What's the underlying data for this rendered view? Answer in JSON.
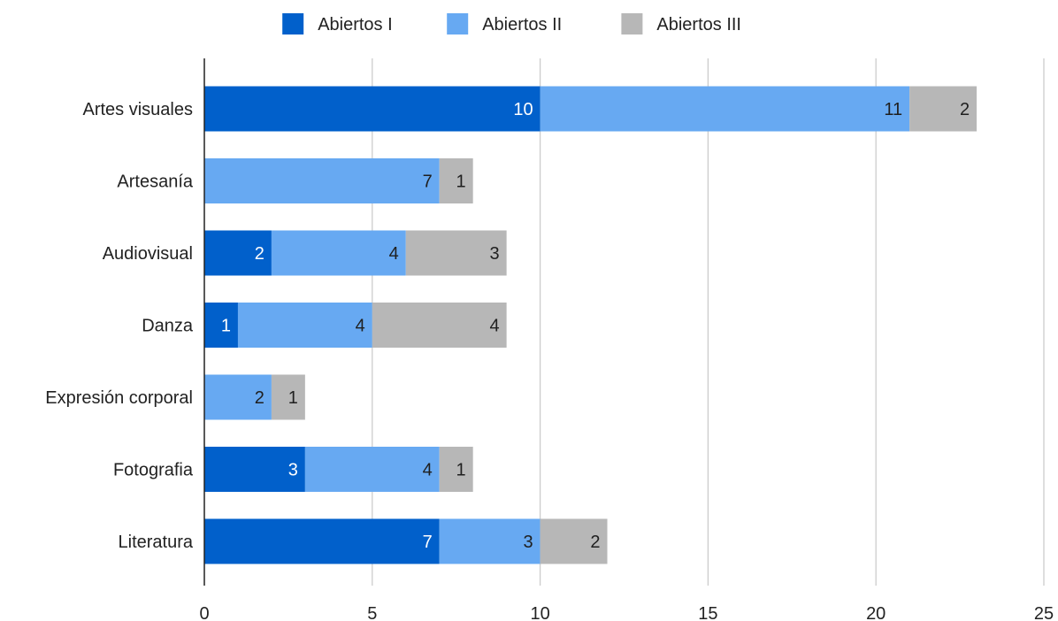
{
  "chart_data": {
    "type": "bar",
    "orientation": "horizontal",
    "stacked": true,
    "title": "",
    "xlabel": "",
    "ylabel": "",
    "categories": [
      "Artes visuales",
      "Artesanía",
      "Audiovisual",
      "Danza",
      "Expresión corporal",
      "Fotografia",
      "Literatura"
    ],
    "series": [
      {
        "name": "Abiertos I",
        "color": "#0160cb",
        "label_color": "#ffffff",
        "values": [
          10,
          0,
          2,
          1,
          0,
          3,
          7
        ]
      },
      {
        "name": "Abiertos II",
        "color": "#67a9f2",
        "label_color": "#1f1f1f",
        "values": [
          11,
          7,
          4,
          4,
          2,
          4,
          3
        ]
      },
      {
        "name": "Abiertos III",
        "color": "#b7b7b7",
        "label_color": "#1f1f1f",
        "values": [
          2,
          1,
          3,
          4,
          1,
          1,
          2
        ]
      }
    ],
    "xlim": [
      0,
      25
    ],
    "xticks": [
      0,
      5,
      10,
      15,
      20,
      25
    ],
    "grid": true,
    "legend_position": "top-center"
  }
}
